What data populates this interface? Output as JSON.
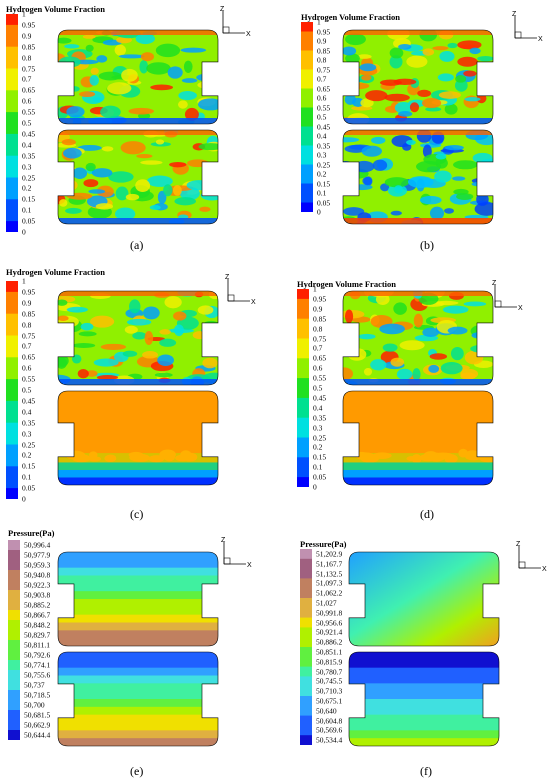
{
  "panels": [
    {
      "id": "a",
      "caption": "(a)",
      "title": "Hydrogen Volume Fraction",
      "variant": "turb",
      "ticks": [
        "1",
        "0.95",
        "0.9",
        "0.85",
        "0.8",
        "0.75",
        "0.7",
        "0.65",
        "0.6",
        "0.55",
        "0.5",
        "0.45",
        "0.4",
        "0.35",
        "0.3",
        "0.25",
        "0.2",
        "0.15",
        "0.1",
        "0.05",
        "0"
      ]
    },
    {
      "id": "b",
      "caption": "(b)",
      "title": "Hydrogen Volume Fraction",
      "variant": "turb2",
      "ticks": [
        "1",
        "0.95",
        "0.9",
        "0.85",
        "0.8",
        "0.75",
        "0.7",
        "0.65",
        "0.6",
        "0.55",
        "0.5",
        "0.45",
        "0.4",
        "0.35",
        "0.3",
        "0.25",
        "0.2",
        "0.15",
        "0.1",
        "0.05",
        "0"
      ]
    },
    {
      "id": "c",
      "caption": "(c)",
      "title": "Hydrogen Volume Fraction",
      "variant": "settled",
      "ticks": [
        "1",
        "0.95",
        "0.9",
        "0.85",
        "0.8",
        "0.75",
        "0.7",
        "0.65",
        "0.6",
        "0.55",
        "0.5",
        "0.45",
        "0.4",
        "0.35",
        "0.3",
        "0.25",
        "0.2",
        "0.15",
        "0.1",
        "0.05",
        "0"
      ]
    },
    {
      "id": "d",
      "caption": "(d)",
      "title": "Hydrogen Volume Fraction",
      "variant": "settled2",
      "ticks": [
        "1",
        "0.95",
        "0.9",
        "0.85",
        "0.8",
        "0.75",
        "0.7",
        "0.65",
        "0.6",
        "0.55",
        "0.5",
        "0.45",
        "0.4",
        "0.35",
        "0.3",
        "0.25",
        "0.2",
        "0.15",
        "0.1",
        "0.05",
        "0"
      ]
    },
    {
      "id": "e",
      "caption": "(e)",
      "title": "Pressure(Pa)",
      "variant": "pressure",
      "ticks": [
        "50,996.4",
        "50,977.9",
        "50,959.3",
        "50,940.8",
        "50,922.3",
        "50,903.8",
        "50,885.2",
        "50,866.7",
        "50,848.2",
        "50,829.7",
        "50,811.1",
        "50,792.6",
        "50,774.1",
        "50,755.6",
        "50,737",
        "50,718.5",
        "50,700",
        "50,681.5",
        "50,662.9",
        "50,644.4"
      ]
    },
    {
      "id": "f",
      "caption": "(f)",
      "title": "Pressure(Pa)",
      "variant": "pressure2",
      "ticks": [
        "51,202.9",
        "51,167.7",
        "51,132.5",
        "51,097.3",
        "51,062.2",
        "51,027",
        "50,991.8",
        "50,956.6",
        "50,921.4",
        "50,886.2",
        "50,851.1",
        "50,815.9",
        "50,780.7",
        "50,745.5",
        "50,710.3",
        "50,675.1",
        "50,640",
        "50,604.8",
        "50,569.6",
        "50,534.4"
      ]
    }
  ],
  "axis_labels": {
    "z": "Z",
    "x": "X"
  },
  "colors": {
    "scale": [
      "#0000ff",
      "#0050ff",
      "#00a0ff",
      "#00e0e0",
      "#00e090",
      "#20e020",
      "#90f000",
      "#f0f000",
      "#ffc000",
      "#ff8000",
      "#ff2000"
    ],
    "pressure_scale": [
      "#1010d0",
      "#2060ff",
      "#30a0ff",
      "#40e0e0",
      "#40f0a0",
      "#60f040",
      "#b0f000",
      "#f0e000",
      "#e0b040",
      "#c08060",
      "#a06080",
      "#c090b0"
    ]
  }
}
